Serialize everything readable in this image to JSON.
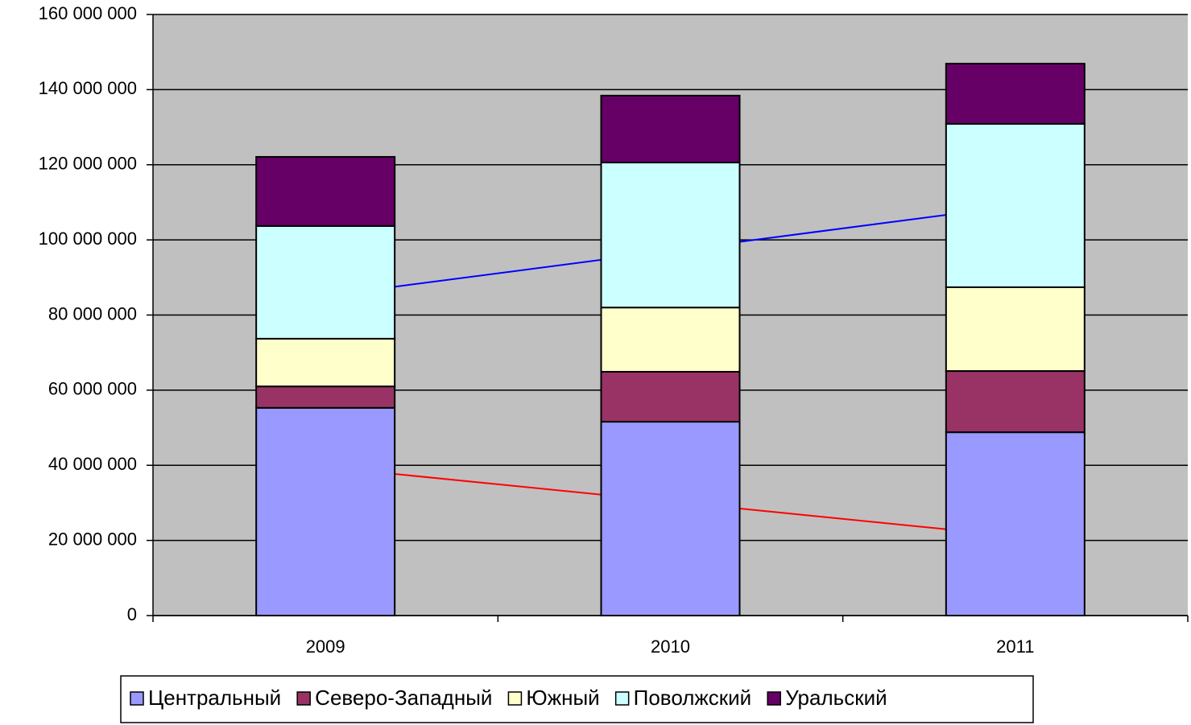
{
  "chart_data": {
    "type": "stacked_bar",
    "categories": [
      "2009",
      "2010",
      "2011"
    ],
    "series": [
      {
        "name": "Центральный",
        "color": "#9999ff",
        "values": [
          55300000,
          51600000,
          48800000
        ]
      },
      {
        "name": "Северо-Западный",
        "color": "#993366",
        "values": [
          5700000,
          13300000,
          16300000
        ]
      },
      {
        "name": "Южный",
        "color": "#ffffcc",
        "values": [
          12700000,
          17100000,
          22300000
        ]
      },
      {
        "name": "Поволжский",
        "color": "#ccffff",
        "values": [
          30000000,
          38600000,
          43500000
        ]
      },
      {
        "name": "Уральский",
        "color": "#660066",
        "values": [
          18400000,
          17800000,
          16000000
        ]
      }
    ],
    "ylim": [
      0,
      160000000
    ],
    "yticks": [
      0,
      {
        "value": 20000000,
        "label": "20 000 000"
      },
      {
        "value": 40000000,
        "label": "40 000 000"
      },
      {
        "value": 60000000,
        "label": "60 000 000"
      },
      {
        "value": 80000000,
        "label": "80 000 000"
      },
      {
        "value": 100000000,
        "label": "100 000 000"
      },
      {
        "value": 120000000,
        "label": "120 000 000"
      },
      {
        "value": 140000000,
        "label": "140 000 000"
      },
      {
        "value": 160000000,
        "label": "160 000 000"
      }
    ],
    "grid": true,
    "legend": "bottom"
  }
}
